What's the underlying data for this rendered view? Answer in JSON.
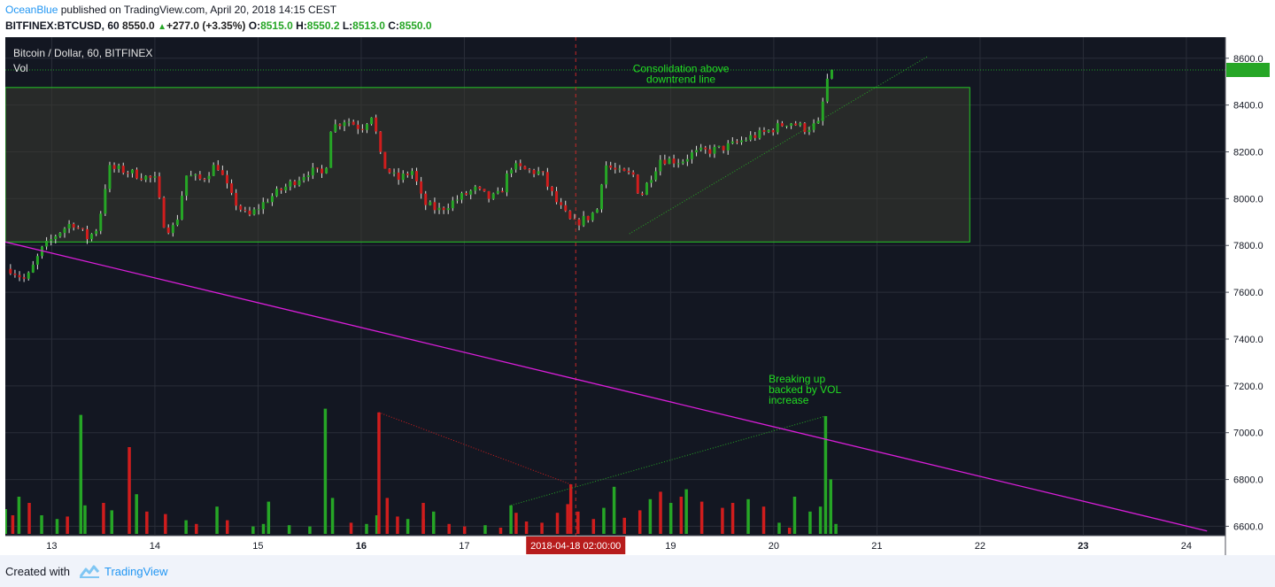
{
  "header": {
    "author": "OceanBlue",
    "published": "published on TradingView.com, April 20, 2018 14:15 CEST",
    "symbol": "BITFINEX:BTCUSD, 60",
    "price": "8550.0",
    "change": "+277.0 (+3.35%)",
    "o_label": "O:",
    "o": "8515.0",
    "h_label": "H:",
    "h": "8550.2",
    "l_label": "L:",
    "l": "8513.0",
    "c_label": "C:",
    "c": "8550.0"
  },
  "footer": {
    "created_with": "Created with",
    "brand": "TradingView"
  },
  "colors": {
    "background": "#131722",
    "up": "#26a626",
    "down": "#d01d1d",
    "trendline": "#d91ed9",
    "annotation": "#22dd22",
    "box_border": "#25c925",
    "axis_bg": "#ffffff"
  },
  "chart_data": {
    "type": "candlestick",
    "title": "Bitcoin / Dollar, 60, BITFINEX",
    "volume_label": "Vol",
    "ylim": [
      6560,
      8690
    ],
    "y_ticks": [
      "8600.0",
      "8400.0",
      "8200.0",
      "8000.0",
      "7800.0",
      "7600.0",
      "7400.0",
      "7200.0",
      "7000.0",
      "6800.0",
      "6600.0"
    ],
    "y_tick_values": [
      8600,
      8400,
      8200,
      8000,
      7800,
      7600,
      7400,
      7200,
      7000,
      6800,
      6600
    ],
    "x_ticks": [
      {
        "label": "13",
        "day": 13,
        "bold": false
      },
      {
        "label": "14",
        "day": 14,
        "bold": false
      },
      {
        "label": "15",
        "day": 15,
        "bold": false
      },
      {
        "label": "16",
        "day": 16,
        "bold": true
      },
      {
        "label": "17",
        "day": 17,
        "bold": false
      },
      {
        "label": "19",
        "day": 19,
        "bold": false
      },
      {
        "label": "20",
        "day": 20,
        "bold": false
      },
      {
        "label": "21",
        "day": 21,
        "bold": false
      },
      {
        "label": "22",
        "day": 22,
        "bold": false
      },
      {
        "label": "23",
        "day": 23,
        "bold": true
      },
      {
        "label": "24",
        "day": 24,
        "bold": false
      }
    ],
    "crosshair_label": "2018-04-18 02:00:00",
    "crosshair_day": 18.08,
    "last_price": 8550,
    "anchors": [
      [
        12.6,
        7700
      ],
      [
        12.75,
        7650
      ],
      [
        12.9,
        7780
      ],
      [
        13.05,
        7850
      ],
      [
        13.2,
        7900
      ],
      [
        13.35,
        7830
      ],
      [
        13.45,
        7880
      ],
      [
        13.55,
        8130
      ],
      [
        13.7,
        8120
      ],
      [
        13.85,
        8100
      ],
      [
        14.0,
        8080
      ],
      [
        14.1,
        7870
      ],
      [
        14.2,
        7880
      ],
      [
        14.3,
        8100
      ],
      [
        14.45,
        8080
      ],
      [
        14.6,
        8150
      ],
      [
        14.75,
        8000
      ],
      [
        14.9,
        7920
      ],
      [
        15.1,
        8000
      ],
      [
        15.3,
        8060
      ],
      [
        15.5,
        8120
      ],
      [
        15.65,
        8100
      ],
      [
        15.7,
        8300
      ],
      [
        15.85,
        8340
      ],
      [
        16.0,
        8300
      ],
      [
        16.1,
        8360
      ],
      [
        16.15,
        8270
      ],
      [
        16.2,
        8150
      ],
      [
        16.35,
        8080
      ],
      [
        16.5,
        8120
      ],
      [
        16.6,
        7980
      ],
      [
        16.75,
        7950
      ],
      [
        16.9,
        7990
      ],
      [
        17.1,
        8040
      ],
      [
        17.25,
        8000
      ],
      [
        17.35,
        8020
      ],
      [
        17.45,
        8140
      ],
      [
        17.6,
        8120
      ],
      [
        17.75,
        8110
      ],
      [
        17.8,
        8060
      ],
      [
        17.9,
        7980
      ],
      [
        18.05,
        7890
      ],
      [
        18.2,
        7920
      ],
      [
        18.3,
        7960
      ],
      [
        18.35,
        8150
      ],
      [
        18.5,
        8110
      ],
      [
        18.65,
        8100
      ],
      [
        18.7,
        8000
      ],
      [
        18.8,
        8090
      ],
      [
        18.9,
        8170
      ],
      [
        19.1,
        8160
      ],
      [
        19.2,
        8190
      ],
      [
        19.3,
        8200
      ],
      [
        19.45,
        8210
      ],
      [
        19.6,
        8230
      ],
      [
        19.75,
        8260
      ],
      [
        19.9,
        8280
      ],
      [
        20.0,
        8300
      ],
      [
        20.15,
        8330
      ],
      [
        20.3,
        8300
      ],
      [
        20.45,
        8320
      ],
      [
        20.5,
        8500
      ],
      [
        20.6,
        8550
      ]
    ],
    "volume": {
      "max_value": 1000,
      "bars": [
        [
          12.55,
          200,
          "up"
        ],
        [
          12.62,
          150,
          "down"
        ],
        [
          12.68,
          300,
          "up"
        ],
        [
          12.78,
          250,
          "down"
        ],
        [
          12.9,
          150,
          "up"
        ],
        [
          13.05,
          120,
          "up"
        ],
        [
          13.15,
          140,
          "down"
        ],
        [
          13.28,
          960,
          "up"
        ],
        [
          13.32,
          230,
          "up"
        ],
        [
          13.5,
          250,
          "down"
        ],
        [
          13.58,
          190,
          "up"
        ],
        [
          13.75,
          700,
          "down"
        ],
        [
          13.82,
          320,
          "up"
        ],
        [
          13.92,
          180,
          "down"
        ],
        [
          14.1,
          160,
          "down"
        ],
        [
          14.3,
          110,
          "up"
        ],
        [
          14.4,
          80,
          "down"
        ],
        [
          14.6,
          220,
          "up"
        ],
        [
          14.7,
          110,
          "down"
        ],
        [
          14.95,
          60,
          "up"
        ],
        [
          15.05,
          80,
          "up"
        ],
        [
          15.1,
          260,
          "up"
        ],
        [
          15.3,
          70,
          "up"
        ],
        [
          15.5,
          60,
          "up"
        ],
        [
          15.65,
          1010,
          "up"
        ],
        [
          15.72,
          290,
          "up"
        ],
        [
          15.9,
          90,
          "down"
        ],
        [
          16.05,
          80,
          "up"
        ],
        [
          16.15,
          150,
          "up"
        ],
        [
          16.17,
          980,
          "down"
        ],
        [
          16.25,
          290,
          "down"
        ],
        [
          16.35,
          140,
          "down"
        ],
        [
          16.45,
          120,
          "up"
        ],
        [
          16.6,
          120,
          "down"
        ],
        [
          16.6,
          250,
          "down"
        ],
        [
          16.7,
          180,
          "up"
        ],
        [
          16.85,
          80,
          "down"
        ],
        [
          17.0,
          60,
          "down"
        ],
        [
          17.2,
          70,
          "up"
        ],
        [
          17.35,
          50,
          "down"
        ],
        [
          17.45,
          230,
          "up"
        ],
        [
          17.5,
          170,
          "down"
        ],
        [
          17.6,
          100,
          "down"
        ],
        [
          17.75,
          90,
          "down"
        ],
        [
          17.9,
          170,
          "down"
        ],
        [
          18.0,
          240,
          "down"
        ],
        [
          18.03,
          400,
          "down"
        ],
        [
          18.1,
          180,
          "down"
        ],
        [
          18.25,
          120,
          "down"
        ],
        [
          18.35,
          210,
          "up"
        ],
        [
          18.45,
          380,
          "up"
        ],
        [
          18.55,
          130,
          "down"
        ],
        [
          18.7,
          190,
          "down"
        ],
        [
          18.8,
          280,
          "up"
        ],
        [
          18.9,
          340,
          "down"
        ],
        [
          19.0,
          250,
          "up"
        ],
        [
          19.1,
          300,
          "down"
        ],
        [
          19.15,
          360,
          "up"
        ],
        [
          19.3,
          260,
          "down"
        ],
        [
          19.5,
          210,
          "down"
        ],
        [
          19.6,
          250,
          "down"
        ],
        [
          19.75,
          280,
          "up"
        ],
        [
          19.9,
          220,
          "down"
        ],
        [
          20.05,
          90,
          "up"
        ],
        [
          20.15,
          50,
          "down"
        ],
        [
          20.2,
          300,
          "up"
        ],
        [
          20.35,
          180,
          "up"
        ],
        [
          20.45,
          220,
          "up"
        ],
        [
          20.5,
          950,
          "up"
        ],
        [
          20.55,
          440,
          "up"
        ],
        [
          20.6,
          80,
          "up"
        ]
      ]
    },
    "annotations": [
      {
        "text": [
          "Consolidation above",
          "downtrend line"
        ],
        "day": 19.1,
        "value": 8540,
        "anchor": "middle"
      },
      {
        "text": [
          "Breaking up",
          "backed by VOL",
          "increase"
        ],
        "day": 19.95,
        "value": 7215,
        "anchor": "start"
      }
    ],
    "box": {
      "day_start": 12.55,
      "day_end": 21.9,
      "top": 8475,
      "bottom": 7815
    },
    "downtrend_line": {
      "start": [
        12.55,
        7815
      ],
      "end": [
        24.2,
        6580
      ]
    },
    "uptrend_line": {
      "start": [
        18.6,
        7850
      ],
      "end": [
        21.5,
        8610
      ]
    },
    "resistance_value": 8550
  }
}
